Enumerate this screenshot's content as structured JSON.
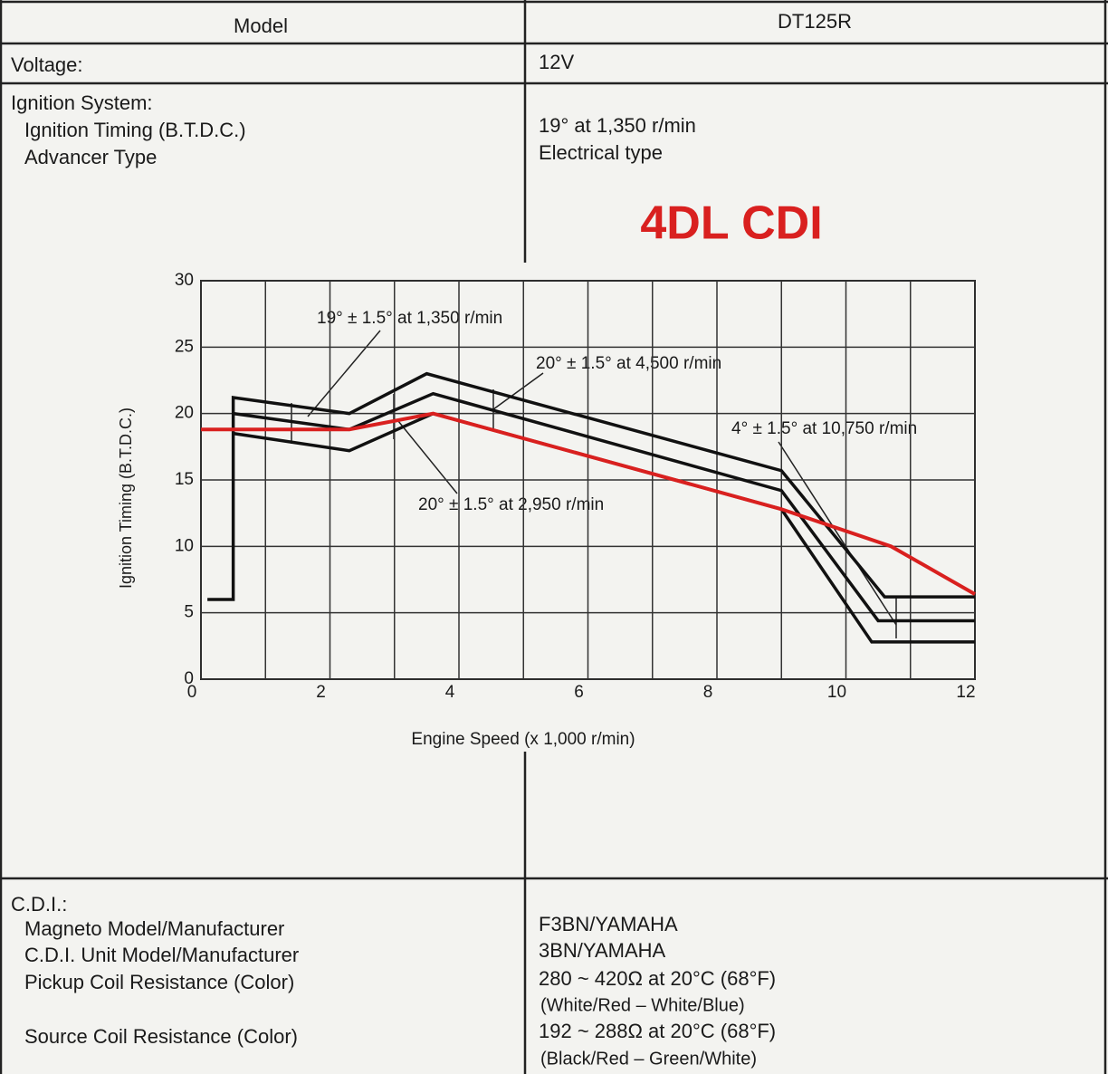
{
  "table": {
    "header": {
      "label": "Model",
      "value": "DT125R"
    },
    "voltage": {
      "label": "Voltage:",
      "value": "12V"
    },
    "ignition": {
      "label": "Ignition System:",
      "items": [
        {
          "label": "Ignition Timing (B.T.D.C.)",
          "value": "19° at 1,350 r/min"
        },
        {
          "label": "Advancer Type",
          "value": "Electrical type"
        }
      ]
    },
    "cdi": {
      "label": "C.D.I.:",
      "items": [
        {
          "label": "Magneto Model/Manufacturer",
          "value": "F3BN/YAMAHA"
        },
        {
          "label": "C.D.I. Unit Model/Manufacturer",
          "value": "3BN/YAMAHA"
        },
        {
          "label": "Pickup Coil Resistance (Color)",
          "value": "280 ~ 420Ω at 20°C (68°F)",
          "note": "(White/Red – White/Blue)"
        },
        {
          "label": "Source Coil Resistance (Color)",
          "value": "192 ~ 288Ω at 20°C (68°F)",
          "note": "(Black/Red – Green/White)"
        }
      ]
    }
  },
  "chart_data": {
    "type": "line",
    "x_label": "Engine Speed (x 1,000 r/min)",
    "y_label": "Ignition Timing (B.T.D.C.)",
    "xlim": [
      0,
      12
    ],
    "ylim": [
      0,
      30
    ],
    "xticks": [
      0,
      2,
      4,
      6,
      8,
      10,
      12
    ],
    "xminor": [
      1,
      3,
      5,
      7,
      9,
      11
    ],
    "yticks": [
      0,
      5,
      10,
      15,
      20,
      25,
      30
    ],
    "grid": true,
    "annotations": [
      "19° ± 1.5° at 1,350 r/min",
      "20° ± 1.5° at 4,500 r/min",
      "4° ± 1.5° at 10,750 r/min",
      "20° ± 1.5° at 2,950 r/min"
    ],
    "series": [
      {
        "color": "#111111",
        "x": [
          0.1,
          0.5,
          0.5,
          2.3,
          3.5,
          9,
          10.6,
          12
        ],
        "values": [
          6,
          6,
          21.2,
          20,
          23,
          15.7,
          6.2,
          6.2
        ]
      },
      {
        "color": "#111111",
        "x": [
          0.5,
          2.3,
          3.6,
          9,
          10.5,
          12
        ],
        "values": [
          20,
          18.8,
          21.5,
          14.2,
          4.4,
          4.4
        ]
      },
      {
        "color": "#111111",
        "x": [
          0.5,
          2.3,
          3.6,
          9,
          10.4,
          12
        ],
        "values": [
          18.5,
          17.2,
          20,
          12.8,
          2.8,
          2.8
        ]
      },
      {
        "name": "4DL CDI",
        "color": "#d9201f",
        "x": [
          0,
          2.3,
          3.6,
          9,
          10.7,
          12
        ],
        "values": [
          18.8,
          18.8,
          20,
          12.8,
          10,
          6.4
        ]
      }
    ]
  }
}
